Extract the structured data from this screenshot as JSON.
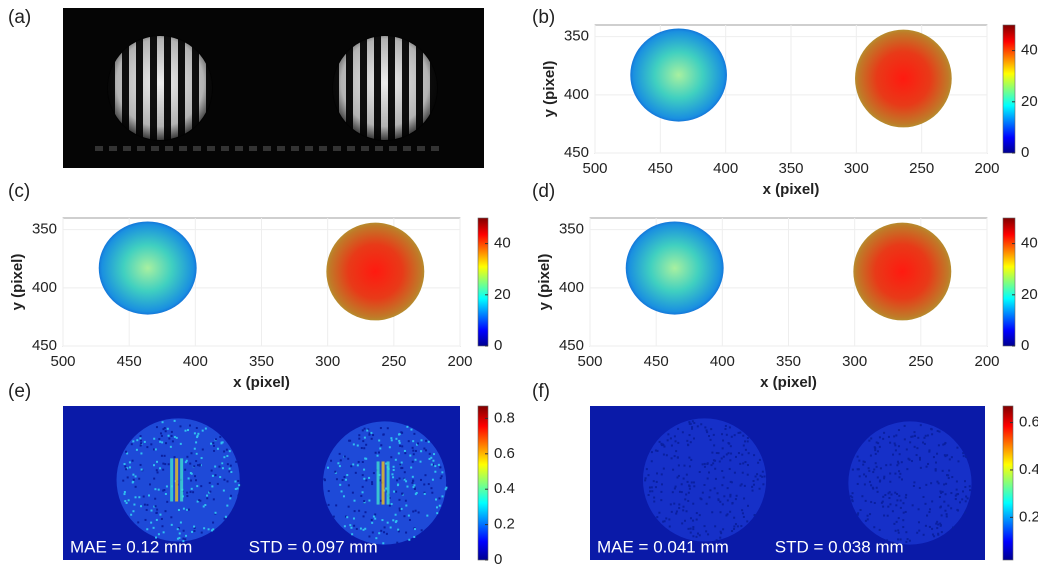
{
  "chart_data": [
    {
      "type": "image",
      "label": "(a)"
    },
    {
      "type": "heatmap",
      "label": "(b)",
      "xlabel": "x (pixel)",
      "ylabel": "y (pixel)",
      "xlim": [
        500,
        200
      ],
      "ylim": [
        450,
        340
      ],
      "xticks": [
        500,
        450,
        400,
        350,
        300,
        250,
        200
      ],
      "yticks": [
        350,
        400,
        450
      ],
      "grid": true,
      "colorbar": {
        "lim": [
          0,
          50
        ],
        "ticks": [
          0,
          20,
          40
        ]
      }
    },
    {
      "type": "heatmap",
      "label": "(c)",
      "xlabel": "x (pixel)",
      "ylabel": "y (pixel)",
      "xlim": [
        500,
        200
      ],
      "ylim": [
        450,
        340
      ],
      "xticks": [
        500,
        450,
        400,
        350,
        300,
        250,
        200
      ],
      "yticks": [
        350,
        400,
        450
      ],
      "grid": true,
      "colorbar": {
        "lim": [
          0,
          50
        ],
        "ticks": [
          0,
          20,
          40
        ]
      }
    },
    {
      "type": "heatmap",
      "label": "(d)",
      "xlabel": "x (pixel)",
      "ylabel": "y (pixel)",
      "xlim": [
        500,
        200
      ],
      "ylim": [
        450,
        340
      ],
      "xticks": [
        500,
        450,
        400,
        350,
        300,
        250,
        200
      ],
      "yticks": [
        350,
        400,
        450
      ],
      "grid": true,
      "colorbar": {
        "lim": [
          0,
          50
        ],
        "ticks": [
          0,
          20,
          40
        ]
      }
    },
    {
      "type": "error-map",
      "label": "(e)",
      "annotations": [
        "MAE = 0.12 mm",
        "STD = 0.097 mm"
      ],
      "colorbar": {
        "lim": [
          0,
          0.87
        ],
        "ticks": [
          0,
          0.2,
          0.4,
          0.6,
          0.8
        ]
      }
    },
    {
      "type": "error-map",
      "label": "(f)",
      "annotations": [
        "MAE = 0.041 mm",
        "STD = 0.038 mm"
      ],
      "colorbar": {
        "lim": [
          0.02,
          0.67
        ],
        "ticks": [
          0.2,
          0.4,
          0.6
        ]
      }
    }
  ]
}
